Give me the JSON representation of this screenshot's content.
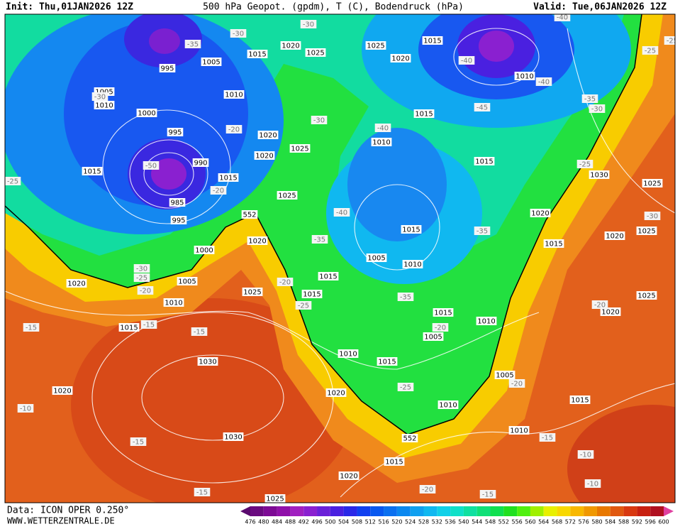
{
  "header": {
    "init": "Init: Thu,01JAN2026 12Z",
    "title": "500 hPa Geopot. (gpdm), T (C), Bodendruck (hPa)",
    "valid": "Valid: Tue,06JAN2026 12Z"
  },
  "footer": {
    "data_source": "Data: ICON OPER 0.250°",
    "website": "WWW.WETTERZENTRALE.DE"
  },
  "map": {
    "pressure_labels": [
      "995",
      "1005",
      "1005",
      "1010",
      "1000",
      "995",
      "990",
      "1015",
      "985",
      "995",
      "1000",
      "1020",
      "1010",
      "1015",
      "1005",
      "1025",
      "1020",
      "1030",
      "1030",
      "1020",
      "1025",
      "1020",
      "1015",
      "1010",
      "1020",
      "1010",
      "1015",
      "1005",
      "1010",
      "1015",
      "1005",
      "1010",
      "1015",
      "1020",
      "1025",
      "1015",
      "1020",
      "1020",
      "1025",
      "1025",
      "1030",
      "1015",
      "1015",
      "1010",
      "1015",
      "1005",
      "1010",
      "1015",
      "1015",
      "1025",
      "1020",
      "1020",
      "1025",
      "1015",
      "1010",
      "1020",
      "1025",
      "1025",
      "1020",
      "1015",
      "1010",
      "1015"
    ],
    "geopotential_labels": [
      "552",
      "552"
    ],
    "temperature_labels": [
      "-30",
      "-35",
      "-30",
      "-30",
      "-25",
      "-20",
      "-30",
      "-40",
      "-40",
      "-35",
      "-45",
      "-40",
      "-40",
      "-40",
      "-25",
      "-25",
      "-35",
      "-30",
      "-25",
      "-30",
      "-20",
      "-25",
      "-30",
      "-20",
      "-25",
      "-35",
      "-35",
      "-20",
      "-20",
      "-15",
      "-15",
      "-15",
      "-10",
      "-15",
      "-15",
      "-20",
      "-15",
      "-15",
      "-10",
      "-10",
      "-20",
      "-25",
      "-20",
      "-50"
    ]
  },
  "legend": {
    "levels": [
      476,
      480,
      484,
      488,
      492,
      496,
      500,
      504,
      508,
      512,
      516,
      520,
      524,
      528,
      532,
      536,
      540,
      544,
      548,
      552,
      556,
      560,
      564,
      568,
      572,
      576,
      580,
      584,
      588,
      592,
      596,
      600
    ],
    "colors": [
      "#5a0a6e",
      "#6a0a80",
      "#7d0a95",
      "#9010aa",
      "#a020c0",
      "#8a20d0",
      "#6a20d8",
      "#4a20e0",
      "#2a28e8",
      "#1040f0",
      "#0858f0",
      "#0a70f0",
      "#0a88f0",
      "#10a0f0",
      "#10b8f0",
      "#10d0e8",
      "#10e0c8",
      "#10e0a0",
      "#10e078",
      "#10e050",
      "#20e020",
      "#50f010",
      "#a0f000",
      "#e8f000",
      "#f8d800",
      "#f8b800",
      "#f09800",
      "#e87800",
      "#e05810",
      "#d83810",
      "#c82010",
      "#b01020",
      "#e040a0"
    ]
  }
}
